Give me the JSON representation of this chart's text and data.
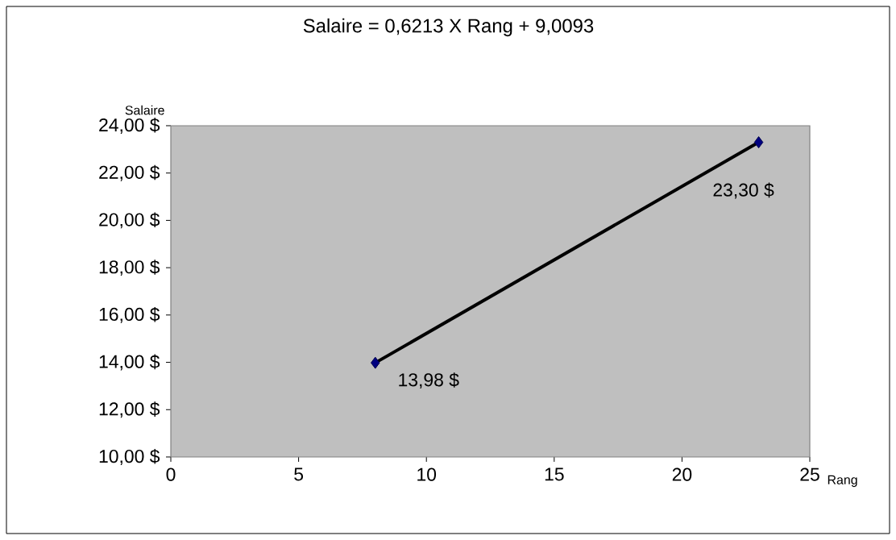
{
  "chart_data": {
    "type": "line",
    "title": "Salaire = 0,6213 X Rang + 9,0093",
    "xlabel": "Rang",
    "ylabel": "Salaire",
    "x": [
      8,
      23
    ],
    "series": [
      {
        "color": "#000000",
        "values": [
          13.98,
          23.3
        ],
        "value_labels": [
          "13,98 $",
          "23,30 $"
        ]
      }
    ],
    "xlim": [
      0,
      25
    ],
    "xticks": [
      0,
      5,
      10,
      15,
      20,
      25
    ],
    "ylim": [
      10,
      24
    ],
    "yticks": [
      {
        "value": 10,
        "label": "10,00 $"
      },
      {
        "value": 12,
        "label": "12,00 $"
      },
      {
        "value": 14,
        "label": "14,00 $"
      },
      {
        "value": 16,
        "label": "16,00 $"
      },
      {
        "value": 18,
        "label": "18,00 $"
      },
      {
        "value": 20,
        "label": "20,00 $"
      },
      {
        "value": 22,
        "label": "22,00 $"
      },
      {
        "value": 24,
        "label": "24,00 $"
      }
    ],
    "grid": false,
    "marker": "diamond",
    "line_style": "solid"
  }
}
